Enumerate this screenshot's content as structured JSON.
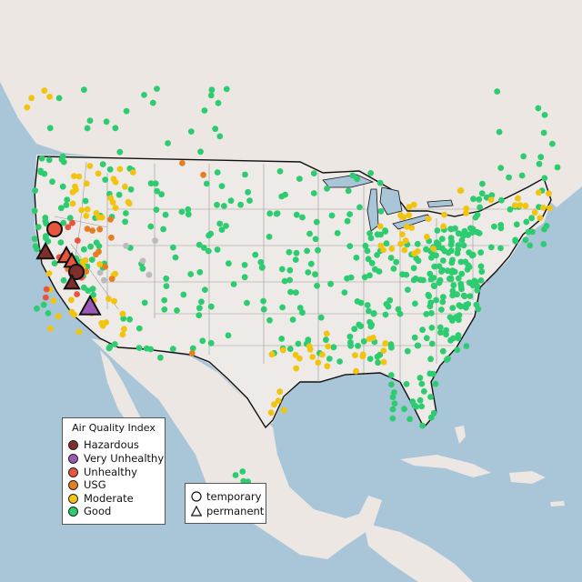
{
  "map": {
    "legend_title": "Air Quality Index",
    "aqi_categories": [
      {
        "key": "hazardous",
        "label": "Hazardous",
        "color": "#7e2f2b"
      },
      {
        "key": "very_unhealthy",
        "label": "Very Unhealthy",
        "color": "#9b59b6"
      },
      {
        "key": "unhealthy",
        "label": "Unhealthy",
        "color": "#e8553f"
      },
      {
        "key": "usg",
        "label": "USG",
        "color": "#e67e22"
      },
      {
        "key": "moderate",
        "label": "Moderate",
        "color": "#f1c40f"
      },
      {
        "key": "good",
        "label": "Good",
        "color": "#2ecc71"
      }
    ],
    "no_data_color": "#bbbbbb",
    "monitor_types": [
      {
        "key": "temporary",
        "label": "temporary",
        "icon": "circle-icon"
      },
      {
        "key": "permanent",
        "label": "permanent",
        "icon": "triangle-icon"
      }
    ],
    "colors": {
      "ocean": "#a9c5d8",
      "land": "#ece7e3",
      "us_fill": "#eeeae7",
      "lakes": "#a9c5d8",
      "country_border": "#111111",
      "state_border": "#999999"
    }
  }
}
